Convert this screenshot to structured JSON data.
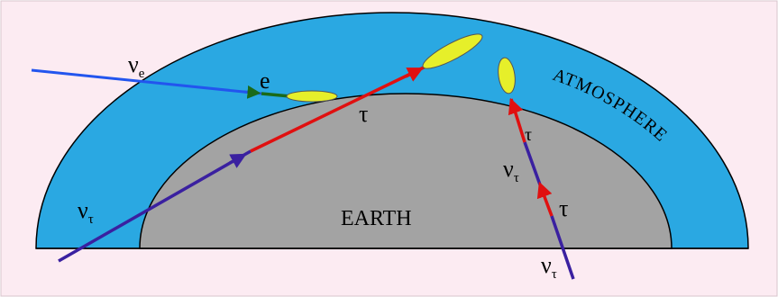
{
  "labels": {
    "nu_e": {
      "symbol": "ν",
      "sub": "e"
    },
    "electron": "e",
    "tau_center": "τ",
    "nu_tau_left": {
      "symbol": "ν",
      "sub": "τ"
    },
    "earth": "EARTH",
    "atmosphere": "ATMOSPHERE",
    "tau_right_top": "τ",
    "nu_tau_right": {
      "symbol": "ν",
      "sub": "τ"
    },
    "tau_right": "τ",
    "nu_tau_bottom": {
      "symbol": "ν",
      "sub": "τ"
    }
  }
}
